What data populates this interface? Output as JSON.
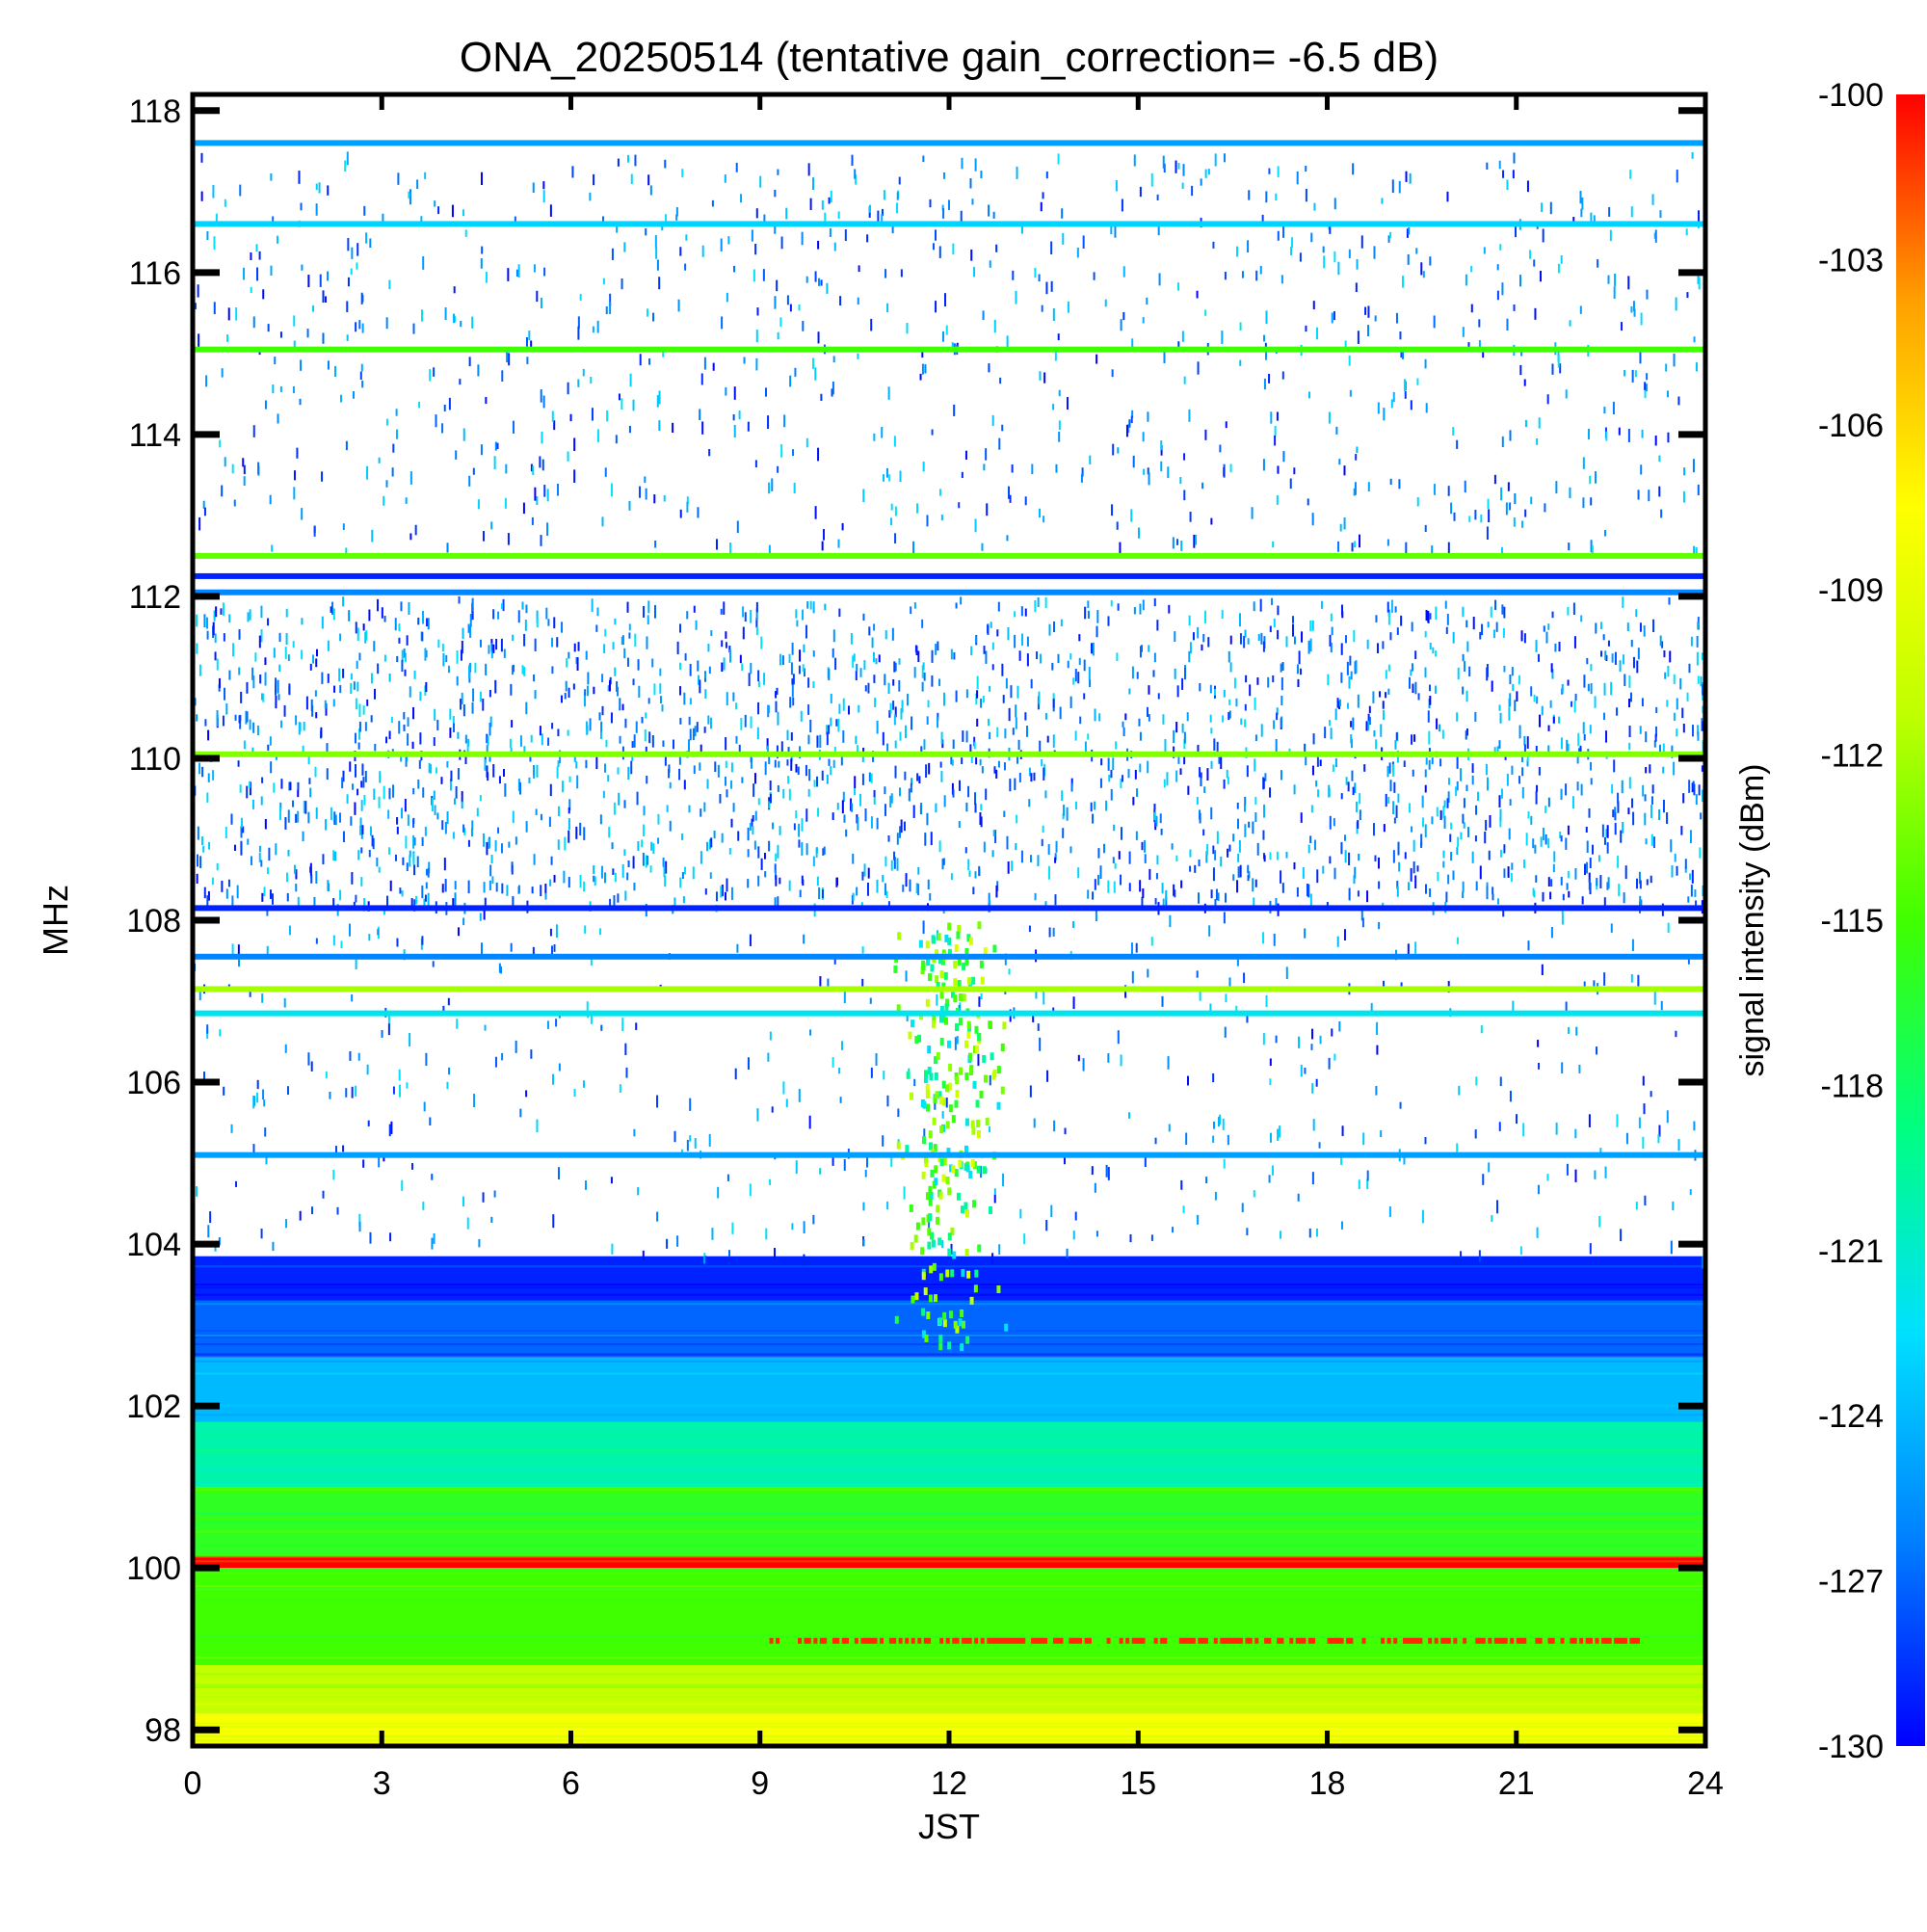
{
  "chart_data": {
    "type": "heatmap",
    "title": "ONA_20250514 (tentative gain_correction= -6.5 dB)",
    "xlabel": "JST",
    "ylabel": "MHz",
    "xlim": [
      0,
      24
    ],
    "ylim": [
      97.8,
      118.2
    ],
    "x_ticks": [
      0,
      3,
      6,
      9,
      12,
      15,
      18,
      21,
      24
    ],
    "y_ticks": [
      98,
      100,
      102,
      104,
      106,
      108,
      110,
      112,
      114,
      116,
      118
    ],
    "colorbar": {
      "label": "signal intensity (dBm)",
      "range": [
        -130,
        -100
      ],
      "ticks": [
        -100,
        -103,
        -106,
        -109,
        -112,
        -115,
        -118,
        -121,
        -124,
        -127,
        -130
      ],
      "colormap": [
        "#0000ff",
        "#0080ff",
        "#00e0ff",
        "#00ff80",
        "#40ff00",
        "#c0ff00",
        "#ffff00",
        "#ffa000",
        "#ff0000"
      ]
    },
    "broadband_regions": [
      {
        "freq_range": [
          97.8,
          98.2
        ],
        "level_dBm": -108
      },
      {
        "freq_range": [
          98.2,
          98.8
        ],
        "level_dBm": -111
      },
      {
        "freq_range": [
          98.8,
          100.0
        ],
        "level_dBm": -115
      },
      {
        "freq_range": [
          100.0,
          100.15
        ],
        "level_dBm": -100
      },
      {
        "freq_range": [
          100.15,
          101.0
        ],
        "level_dBm": -116
      },
      {
        "freq_range": [
          101.0,
          101.8
        ],
        "level_dBm": -120
      },
      {
        "freq_range": [
          101.8,
          102.6
        ],
        "level_dBm": -124
      },
      {
        "freq_range": [
          102.6,
          103.3
        ],
        "level_dBm": -127
      },
      {
        "freq_range": [
          103.3,
          103.85
        ],
        "level_dBm": -129
      }
    ],
    "continuous_lines": [
      {
        "freq": 117.6,
        "level_dBm": -125
      },
      {
        "freq": 116.6,
        "level_dBm": -123
      },
      {
        "freq": 115.05,
        "level_dBm": -115
      },
      {
        "freq": 112.5,
        "level_dBm": -114
      },
      {
        "freq": 112.25,
        "level_dBm": -129
      },
      {
        "freq": 112.05,
        "level_dBm": -126
      },
      {
        "freq": 110.05,
        "level_dBm": -113
      },
      {
        "freq": 108.15,
        "level_dBm": -129
      },
      {
        "freq": 107.55,
        "level_dBm": -126
      },
      {
        "freq": 107.15,
        "level_dBm": -112
      },
      {
        "freq": 106.85,
        "level_dBm": -122
      },
      {
        "freq": 105.1,
        "level_dBm": -125
      }
    ],
    "sparse_bands": [
      {
        "freq_range": [
          103.85,
          108.2
        ],
        "density": "low"
      },
      {
        "freq_range": [
          108.2,
          112.0
        ],
        "density": "high"
      },
      {
        "freq_range": [
          112.6,
          117.5
        ],
        "density": "medium"
      }
    ],
    "burst_event": {
      "time_jst": 12.0,
      "freq_range": [
        102.7,
        108.0
      ],
      "level_dBm": -116
    },
    "intermittent_band": {
      "freq": 99.1,
      "time_range": [
        9,
        23
      ],
      "level_dBm": -101
    }
  }
}
